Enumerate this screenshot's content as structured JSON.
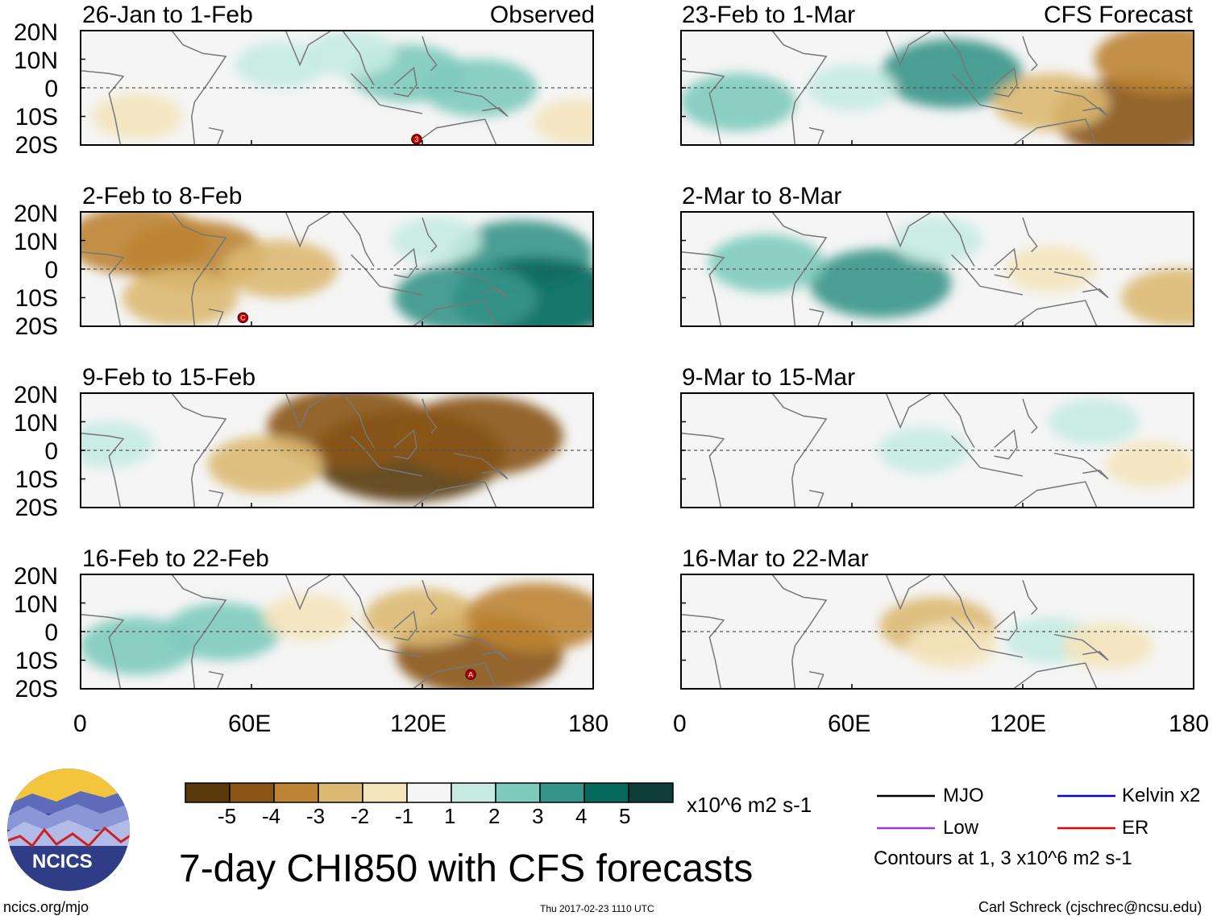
{
  "chart_data": {
    "type": "heatmap",
    "title": "7-day CHI850 with CFS forecasts",
    "variable": "CHI850",
    "units": "x10^6 m2 s-1",
    "lon_ticks": [
      "0",
      "60E",
      "120E",
      "180"
    ],
    "lat_ticks": [
      "20N",
      "10N",
      "0",
      "10S",
      "20S"
    ],
    "lon_range": [
      0,
      180
    ],
    "lat_range": [
      -20,
      20
    ],
    "column_headers": [
      "Observed",
      "CFS Forecast"
    ],
    "panels": [
      {
        "title": "26-Jan to 1-Feb",
        "source": "Observed",
        "anomaly_blobs": [
          {
            "lon": 115,
            "lat": 5,
            "value": 2
          },
          {
            "lon": 140,
            "lat": 0,
            "value": 2
          },
          {
            "lon": 95,
            "lat": 12,
            "value": 1
          },
          {
            "lon": 70,
            "lat": 8,
            "value": 1
          },
          {
            "lon": 20,
            "lat": -10,
            "value": -1
          },
          {
            "lon": 175,
            "lat": -12,
            "value": -1
          }
        ],
        "cyclones": [
          {
            "lon": 118,
            "lat": -18,
            "label": "3"
          }
        ]
      },
      {
        "title": "2-Feb to 8-Feb",
        "source": "Observed",
        "anomaly_blobs": [
          {
            "lon": 20,
            "lat": 10,
            "value": -3
          },
          {
            "lon": 40,
            "lat": 5,
            "value": -3
          },
          {
            "lon": 70,
            "lat": 0,
            "value": -2
          },
          {
            "lon": 35,
            "lat": -10,
            "value": -2
          },
          {
            "lon": 155,
            "lat": 5,
            "value": 3
          },
          {
            "lon": 160,
            "lat": -10,
            "value": 4
          },
          {
            "lon": 135,
            "lat": -10,
            "value": 3
          },
          {
            "lon": 125,
            "lat": 10,
            "value": 1
          }
        ],
        "cyclones": [
          {
            "lon": 57,
            "lat": -17,
            "label": "C"
          }
        ]
      },
      {
        "title": "9-Feb to 15-Feb",
        "source": "Observed",
        "anomaly_blobs": [
          {
            "lon": 115,
            "lat": -2,
            "value": -5
          },
          {
            "lon": 95,
            "lat": 8,
            "value": -4
          },
          {
            "lon": 140,
            "lat": 5,
            "value": -4
          },
          {
            "lon": 65,
            "lat": -5,
            "value": -2
          },
          {
            "lon": 10,
            "lat": 2,
            "value": 1
          }
        ],
        "cyclones": []
      },
      {
        "title": "16-Feb to 22-Feb",
        "source": "Observed",
        "anomaly_blobs": [
          {
            "lon": 140,
            "lat": -8,
            "value": -4
          },
          {
            "lon": 120,
            "lat": 5,
            "value": -2
          },
          {
            "lon": 160,
            "lat": 5,
            "value": -3
          },
          {
            "lon": 20,
            "lat": -5,
            "value": 2
          },
          {
            "lon": 50,
            "lat": 0,
            "value": 2
          },
          {
            "lon": 80,
            "lat": 5,
            "value": -1
          }
        ],
        "cyclones": [
          {
            "lon": 137,
            "lat": -15,
            "label": "A"
          }
        ]
      },
      {
        "title": "23-Feb to 1-Mar",
        "source": "CFS Forecast",
        "anomaly_blobs": [
          {
            "lon": 95,
            "lat": 5,
            "value": 3
          },
          {
            "lon": 60,
            "lat": 0,
            "value": 1
          },
          {
            "lon": 20,
            "lat": -5,
            "value": 2
          },
          {
            "lon": 160,
            "lat": -10,
            "value": -4
          },
          {
            "lon": 170,
            "lat": 10,
            "value": -3
          },
          {
            "lon": 130,
            "lat": -5,
            "value": -2
          }
        ],
        "cyclones": []
      },
      {
        "title": "2-Mar to 8-Mar",
        "source": "CFS Forecast",
        "anomaly_blobs": [
          {
            "lon": 70,
            "lat": -5,
            "value": 3
          },
          {
            "lon": 30,
            "lat": 2,
            "value": 2
          },
          {
            "lon": 90,
            "lat": 10,
            "value": 1
          },
          {
            "lon": 175,
            "lat": -10,
            "value": -2
          },
          {
            "lon": 130,
            "lat": 0,
            "value": -1
          }
        ],
        "cyclones": []
      },
      {
        "title": "9-Mar to 15-Mar",
        "source": "CFS Forecast",
        "anomaly_blobs": [
          {
            "lon": 85,
            "lat": 0,
            "value": 1
          },
          {
            "lon": 145,
            "lat": 10,
            "value": 1
          },
          {
            "lon": 165,
            "lat": -5,
            "value": -1
          }
        ],
        "cyclones": []
      },
      {
        "title": "16-Mar to 22-Mar",
        "source": "CFS Forecast",
        "anomaly_blobs": [
          {
            "lon": 90,
            "lat": 2,
            "value": -2
          },
          {
            "lon": 95,
            "lat": -5,
            "value": -1
          },
          {
            "lon": 130,
            "lat": -3,
            "value": 1
          },
          {
            "lon": 150,
            "lat": -5,
            "value": -1
          }
        ],
        "cyclones": []
      }
    ],
    "colorbar": {
      "tick_labels": [
        "-5",
        "-4",
        "-3",
        "-2",
        "-1",
        "1",
        "2",
        "3",
        "4",
        "5"
      ],
      "colors": [
        "#5a3a0b",
        "#8a5514",
        "#bd8433",
        "#dbb972",
        "#f4e4bd",
        "#f5f5f5",
        "#c5ebe2",
        "#7ecbbc",
        "#36958a",
        "#05695e",
        "#0f3e38"
      ]
    },
    "legend": {
      "items": [
        {
          "label": "MJO",
          "color": "#000000"
        },
        {
          "label": "Kelvin x2",
          "color": "#0000ee"
        },
        {
          "label": "Low",
          "color": "#9933ee"
        },
        {
          "label": "ER",
          "color": "#ee0000"
        }
      ],
      "note": "Contours at 1, 3 x10^6 m2 s-1"
    }
  },
  "footer": {
    "logo_text": "NCICS",
    "url": "ncics.org/mjo",
    "timestamp": "Thu 2017-02-23 1110 UTC",
    "author": "Carl Schreck (cjschrec@ncsu.edu)"
  }
}
